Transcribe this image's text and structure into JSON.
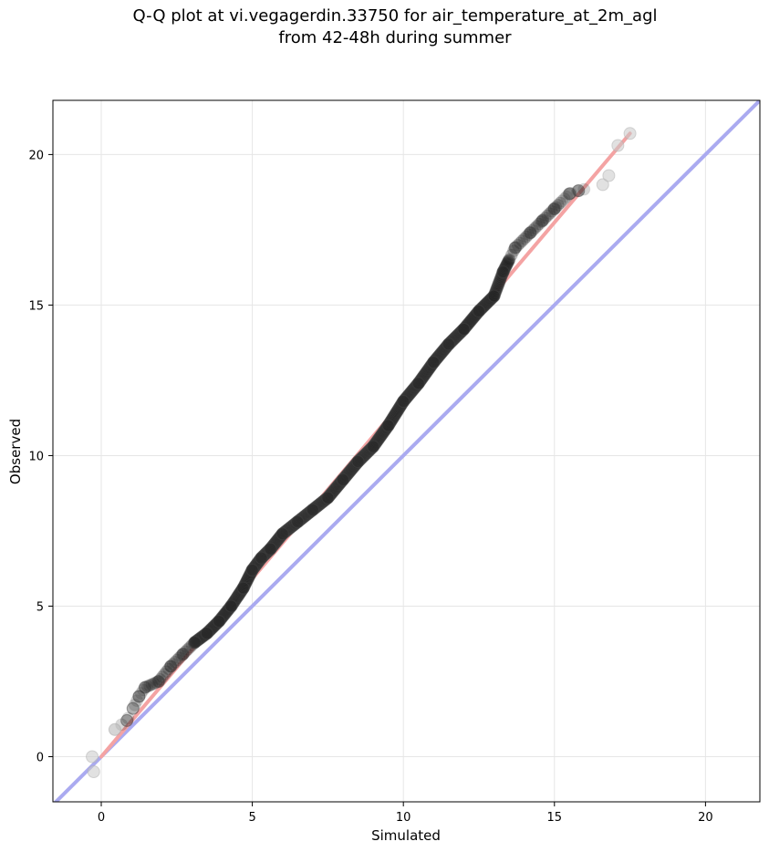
{
  "chart_data": {
    "type": "scatter",
    "title_line1": "Q-Q plot at vi.vegagerdin.33750 for air_temperature_at_2m_agl",
    "title_line2": "from 42-48h during summer",
    "xlabel": "Simulated",
    "ylabel": "Observed",
    "xlim": [
      -1.6,
      21.8
    ],
    "ylim": [
      -1.5,
      21.8
    ],
    "xticks": [
      0,
      5,
      10,
      15,
      20
    ],
    "yticks": [
      0,
      5,
      10,
      15,
      20
    ],
    "grid": true,
    "colors": {
      "identity_line": "#aaaaf0",
      "fit_line": "#f4a3a3",
      "points_dense": "#222222",
      "points_sparse": "#c8c8c8"
    },
    "identity_line": {
      "x": [
        -1.6,
        21.8
      ],
      "y": [
        -1.6,
        21.8
      ]
    },
    "fit_line": {
      "x": [
        0.0,
        17.5
      ],
      "y": [
        0.0,
        20.7
      ]
    },
    "quantiles": {
      "x": [
        -0.3,
        -0.25,
        0.45,
        0.85,
        1.05,
        1.25,
        1.45,
        1.9,
        2.3,
        2.7,
        3.1,
        3.5,
        3.9,
        4.3,
        4.7,
        5.0,
        5.3,
        5.6,
        6.0,
        6.5,
        7.0,
        7.5,
        8.0,
        8.5,
        9.0,
        9.5,
        10.0,
        10.5,
        11.0,
        11.5,
        12.0,
        12.5,
        13.0,
        13.3,
        13.7,
        14.2,
        14.6,
        15.0,
        15.5,
        15.8,
        16.6,
        16.8,
        17.1,
        17.5
      ],
      "y": [
        0.0,
        -0.5,
        0.9,
        1.2,
        1.6,
        2.0,
        2.3,
        2.5,
        3.0,
        3.4,
        3.8,
        4.1,
        4.5,
        5.0,
        5.6,
        6.2,
        6.6,
        6.9,
        7.4,
        7.8,
        8.2,
        8.6,
        9.2,
        9.8,
        10.3,
        11.0,
        11.8,
        12.4,
        13.1,
        13.7,
        14.2,
        14.8,
        15.3,
        16.1,
        16.9,
        17.4,
        17.8,
        18.2,
        18.7,
        18.8,
        19.0,
        19.3,
        20.3,
        20.7
      ]
    }
  }
}
